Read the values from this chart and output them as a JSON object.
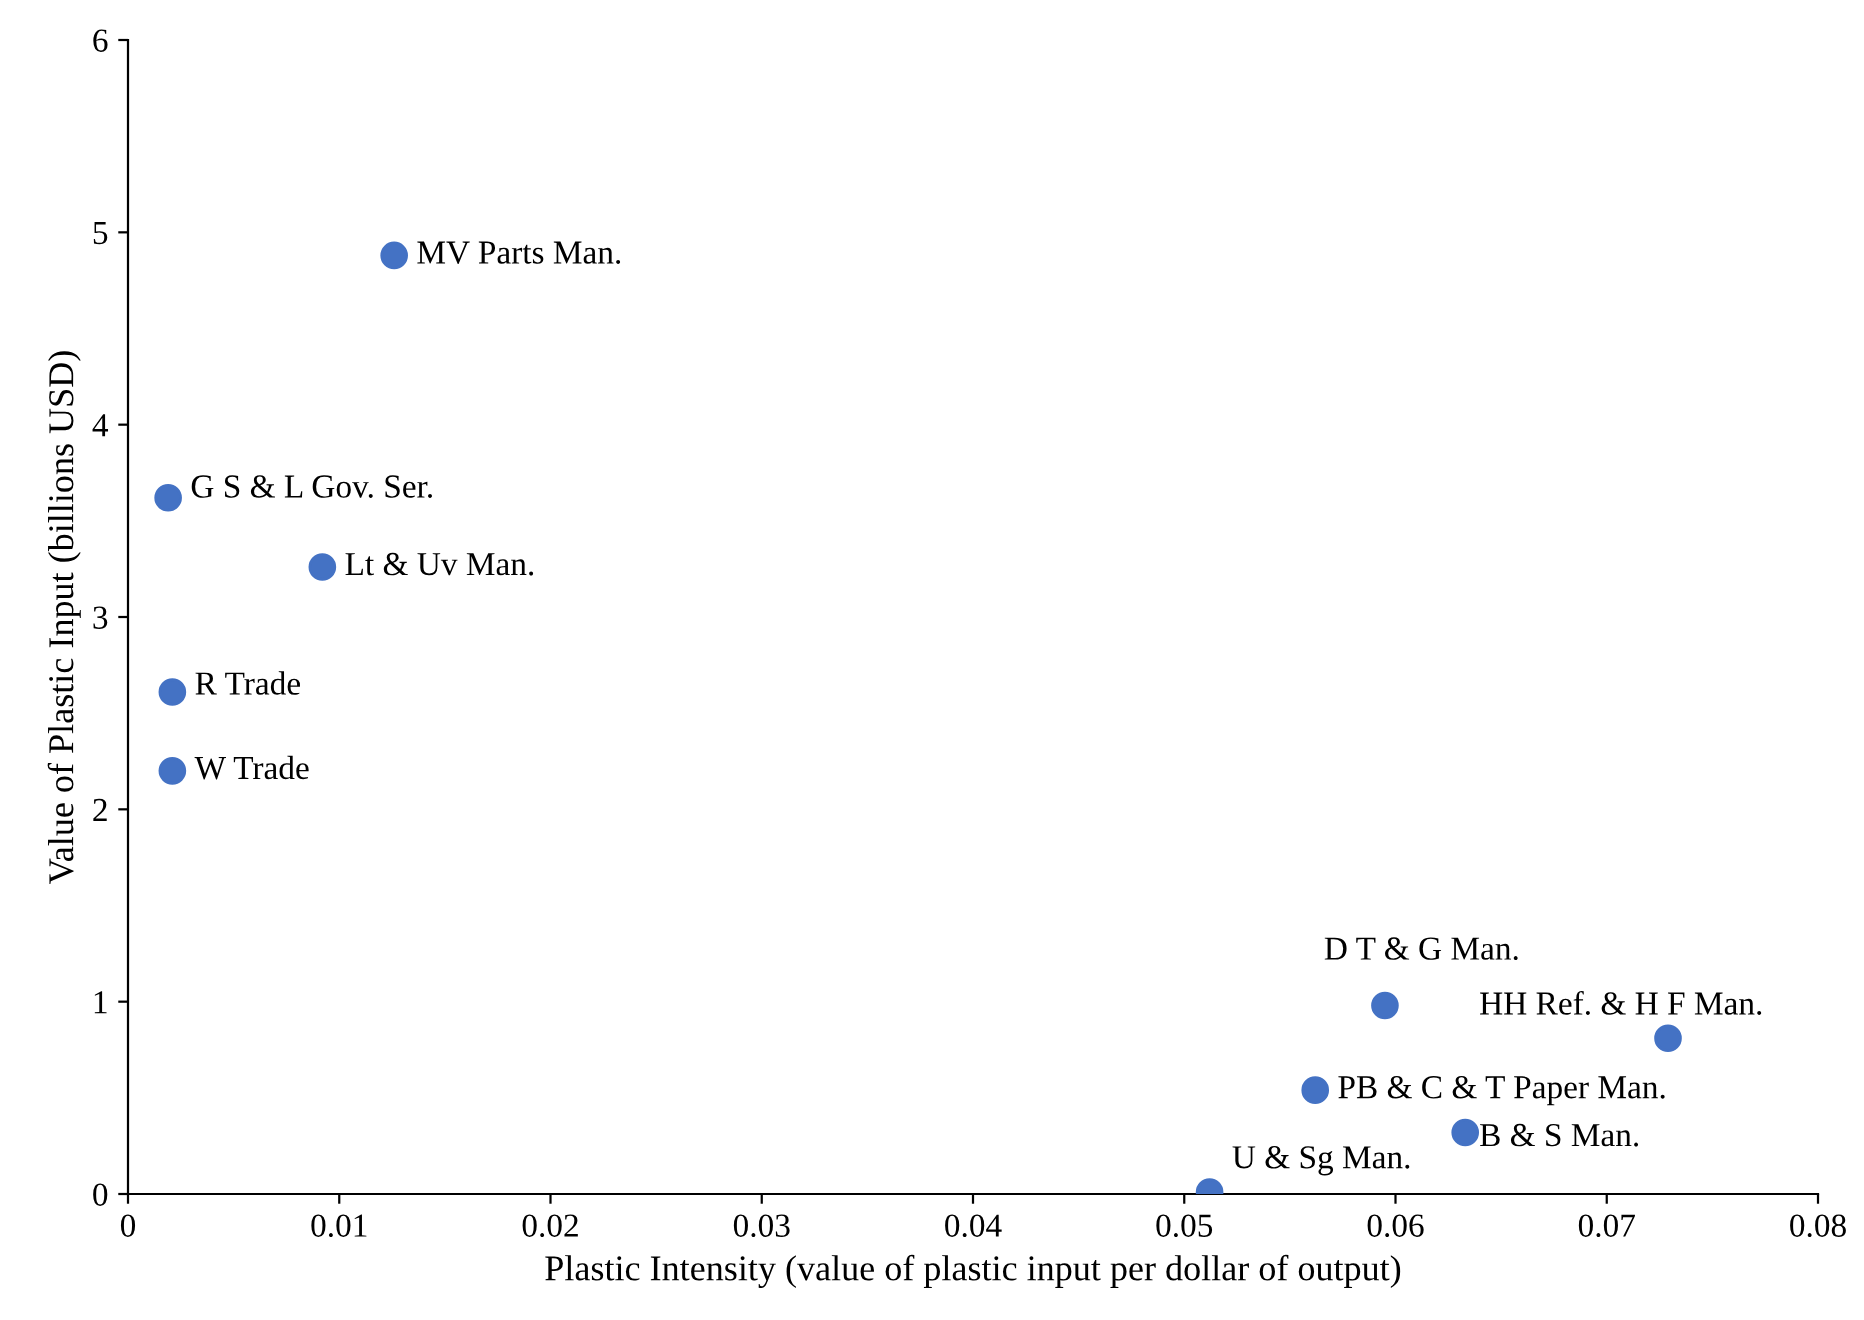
{
  "chart_data": {
    "type": "scatter",
    "xlabel": "Plastic Intensity (value of plastic input per dollar of output)",
    "ylabel": "Value of Plastic Input (billions USD)",
    "x": [
      0.0126,
      0.0019,
      0.0092,
      0.0021,
      0.0021,
      0.0595,
      0.0729,
      0.0562,
      0.0633,
      0.0512
    ],
    "series": [
      {
        "color": "#4472c4",
        "values": [
          4.88,
          3.62,
          3.26,
          2.61,
          2.2,
          0.98,
          0.81,
          0.54,
          0.32,
          0.01
        ]
      }
    ],
    "annotations": [
      {
        "text": "MV Parts Man.",
        "x": 0.0126,
        "y": 4.88
      },
      {
        "text": "G S & L Gov. Ser.",
        "x": 0.0019,
        "y": 3.62
      },
      {
        "text": "Lt & Uv Man.",
        "x": 0.0092,
        "y": 3.26
      },
      {
        "text": "R Trade",
        "x": 0.0021,
        "y": 2.61
      },
      {
        "text": "W Trade",
        "x": 0.0021,
        "y": 2.2
      },
      {
        "text": "D T & G Man.",
        "x": 0.0595,
        "y": 0.98
      },
      {
        "text": "HH Ref. & H F Man.",
        "x": 0.0729,
        "y": 0.81
      },
      {
        "text": "PB & C & T Paper Man.",
        "x": 0.0562,
        "y": 0.54
      },
      {
        "text": "B & S Man.",
        "x": 0.0633,
        "y": 0.32
      },
      {
        "text": "U & Sg Man.",
        "x": 0.0512,
        "y": 0.01
      }
    ],
    "xlim": [
      0,
      0.08
    ],
    "xticks": [
      0,
      0.01,
      0.02,
      0.03,
      0.04,
      0.05,
      0.06,
      0.07,
      0.08
    ],
    "ylim": [
      0,
      6
    ],
    "yticks": [
      0,
      1,
      2,
      3,
      4,
      5,
      6
    ],
    "grid": false,
    "legend": false,
    "marker": "circle"
  }
}
